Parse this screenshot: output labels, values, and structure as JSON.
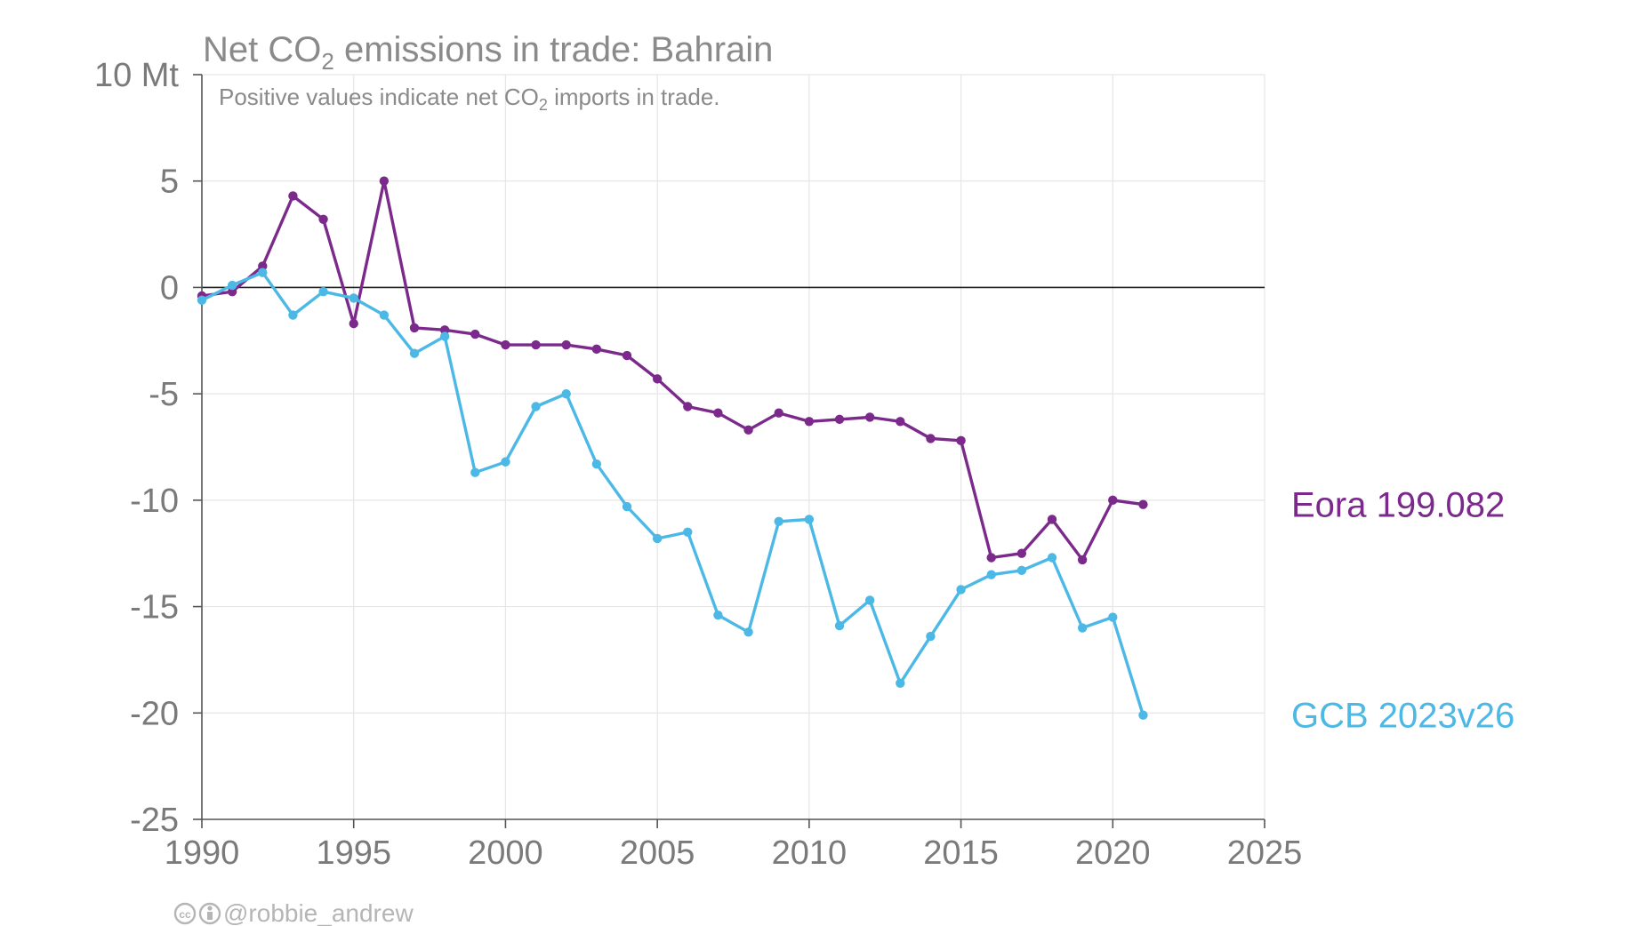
{
  "chart_data": {
    "type": "line",
    "title": "Net CO₂ emissions in trade: Bahrain",
    "title_parts": {
      "pre": "Net CO",
      "sub": "2",
      "post": " emissions in trade: Bahrain"
    },
    "subtitle": "Positive values indicate net CO₂ imports in trade.",
    "subtitle_parts": {
      "pre": "Positive values indicate net CO",
      "sub": "2",
      "post": " imports in trade."
    },
    "xlabel": "",
    "ylabel": "",
    "unit_label": "10 Mt",
    "xlim": [
      1990,
      2025
    ],
    "ylim": [
      -25,
      10
    ],
    "x_ticks": [
      "1990",
      "1995",
      "2000",
      "2005",
      "2010",
      "2015",
      "2020",
      "2025"
    ],
    "y_ticks": [
      "10 Mt",
      "5",
      "0",
      "-5",
      "-10",
      "-15",
      "-20",
      "-25"
    ],
    "grid": true,
    "legend_placement": "right (direct labels)",
    "series": [
      {
        "name": "Eora 199.082",
        "color": "#7b2a8c",
        "x": [
          1990,
          1991,
          1992,
          1993,
          1994,
          1995,
          1996,
          1997,
          1998,
          1999,
          2000,
          2001,
          2002,
          2003,
          2004,
          2005,
          2006,
          2007,
          2008,
          2009,
          2010,
          2011,
          2012,
          2013,
          2014,
          2015,
          2016,
          2017,
          2018,
          2019,
          2020,
          2021
        ],
        "values": [
          -0.4,
          -0.2,
          1.0,
          4.3,
          3.2,
          -1.7,
          5.0,
          -1.9,
          -2.0,
          -2.2,
          -2.7,
          -2.7,
          -2.7,
          -2.9,
          -3.2,
          -4.3,
          -5.6,
          -5.9,
          -6.7,
          -5.9,
          -6.3,
          -6.2,
          -6.1,
          -6.3,
          -7.1,
          -7.2,
          -12.7,
          -12.5,
          -10.9,
          -12.8,
          -10.0,
          -10.2
        ]
      },
      {
        "name": "GCB 2023v26",
        "color": "#4cb8e6",
        "x": [
          1990,
          1991,
          1992,
          1993,
          1994,
          1995,
          1996,
          1997,
          1998,
          1999,
          2000,
          2001,
          2002,
          2003,
          2004,
          2005,
          2006,
          2007,
          2008,
          2009,
          2010,
          2011,
          2012,
          2013,
          2014,
          2015,
          2016,
          2017,
          2018,
          2019,
          2020,
          2021
        ],
        "values": [
          -0.6,
          0.1,
          0.7,
          -1.3,
          -0.2,
          -0.5,
          -1.3,
          -3.1,
          -2.3,
          -8.7,
          -8.2,
          -5.6,
          -5.0,
          -8.3,
          -10.3,
          -11.8,
          -11.5,
          -15.4,
          -16.2,
          -11.0,
          -10.9,
          -15.9,
          -14.7,
          -18.6,
          -16.4,
          -14.2,
          -13.5,
          -13.3,
          -12.7,
          -16.0,
          -15.5,
          -20.1
        ]
      }
    ]
  },
  "credit": {
    "icons": [
      "creative-commons-icon",
      "attribution-icon"
    ],
    "text": "@robbie_andrew"
  }
}
